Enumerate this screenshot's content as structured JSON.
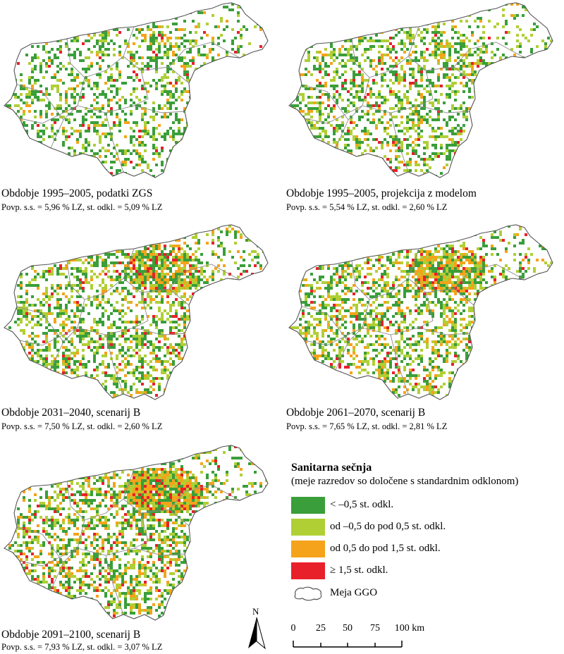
{
  "panels": [
    {
      "title": "Obdobje 1995–2005, podatki ZGS",
      "stats": "Povp. s.s. = 5,96 % LZ, st. odkl. = 5,09 % LZ"
    },
    {
      "title": "Obdobje 1995–2005, projekcija z modelom",
      "stats": "Povp. s.s. = 5,54 % LZ, st. odkl. = 2,60 % LZ"
    },
    {
      "title": "Obdobje 2031–2040, scenarij B",
      "stats": "Povp. s.s. = 7,50 % LZ, st. odkl. = 2,60 % LZ"
    },
    {
      "title": "Obdobje 2061–2070, scenarij B",
      "stats": "Povp. s.s. = 7,65 % LZ, st. odkl. = 2,81 % LZ"
    },
    {
      "title": "Obdobje 2091–2100, scenarij B",
      "stats": "Povp. s.s. = 7,93 % LZ, st. odkl. = 3,07 % LZ"
    }
  ],
  "legend": {
    "title": "Sanitarna sečnja",
    "subtitle": "(meje razredov so določene s standardnim odklonom)",
    "items": [
      {
        "label": "< –0,5 st. odkl.",
        "color": "#3a9e3a"
      },
      {
        "label": "od –0,5 do pod 0,5 st. odkl.",
        "color": "#b0cf35"
      },
      {
        "label": "od 0,5 do pod 1,5 st. odkl.",
        "color": "#f5a31a"
      },
      {
        "label": "≥ 1,5 st. odkl.",
        "color": "#e8202a"
      }
    ],
    "boundary_label": "Meja GGO"
  },
  "north_label": "N",
  "scale_bar": {
    "ticks": [
      "0",
      "25",
      "50",
      "75",
      "100 km"
    ]
  }
}
